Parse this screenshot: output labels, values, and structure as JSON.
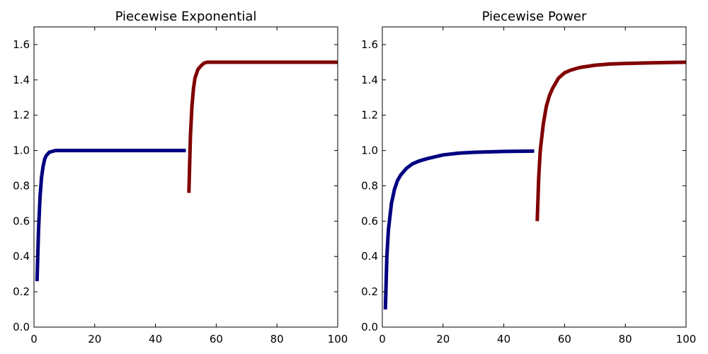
{
  "chart_data": [
    {
      "type": "line",
      "title": "Piecewise Exponential",
      "xlabel": "",
      "ylabel": "",
      "xlim": [
        0,
        100
      ],
      "ylim": [
        0.0,
        1.7
      ],
      "xticks": [
        "0",
        "20",
        "40",
        "60",
        "80",
        "100"
      ],
      "yticks": [
        "0.0",
        "0.2",
        "0.4",
        "0.6",
        "0.8",
        "1.0",
        "1.2",
        "1.4",
        "1.6"
      ],
      "grid": false,
      "series": [
        {
          "color": "#000080",
          "x": [
            1,
            1.5,
            2,
            2.5,
            3,
            3.5,
            4,
            5,
            6,
            7,
            8,
            10,
            15,
            20,
            30,
            40,
            50
          ],
          "y": [
            0.26,
            0.55,
            0.74,
            0.85,
            0.91,
            0.95,
            0.97,
            0.99,
            0.995,
            1.0,
            1.0,
            1.0,
            1.0,
            1.0,
            1.0,
            1.0,
            1.0
          ]
        },
        {
          "color": "#800000",
          "x": [
            51,
            51.5,
            52,
            52.5,
            53,
            54,
            55,
            56,
            57,
            58,
            60,
            65,
            70,
            80,
            90,
            100
          ],
          "y": [
            0.76,
            1.08,
            1.25,
            1.35,
            1.41,
            1.46,
            1.48,
            1.495,
            1.5,
            1.5,
            1.5,
            1.5,
            1.5,
            1.5,
            1.5,
            1.5
          ]
        }
      ]
    },
    {
      "type": "line",
      "title": "Piecewise Power",
      "xlabel": "",
      "ylabel": "",
      "xlim": [
        0,
        100
      ],
      "ylim": [
        0.0,
        1.7
      ],
      "xticks": [
        "0",
        "20",
        "40",
        "60",
        "80",
        "100"
      ],
      "yticks": [
        "0.0",
        "0.2",
        "0.4",
        "0.6",
        "0.8",
        "1.0",
        "1.2",
        "1.4",
        "1.6"
      ],
      "grid": false,
      "series": [
        {
          "color": "#000080",
          "x": [
            1,
            1.5,
            2,
            3,
            4,
            5,
            6,
            8,
            10,
            12,
            15,
            20,
            25,
            30,
            40,
            50
          ],
          "y": [
            0.1,
            0.4,
            0.55,
            0.7,
            0.78,
            0.83,
            0.86,
            0.9,
            0.925,
            0.94,
            0.955,
            0.975,
            0.985,
            0.99,
            0.995,
            0.997
          ]
        },
        {
          "color": "#800000",
          "x": [
            51,
            51.5,
            52,
            53,
            54,
            55,
            56,
            58,
            60,
            62,
            65,
            70,
            75,
            80,
            90,
            100
          ],
          "y": [
            0.6,
            0.85,
            1.0,
            1.15,
            1.25,
            1.31,
            1.35,
            1.41,
            1.44,
            1.455,
            1.47,
            1.483,
            1.49,
            1.493,
            1.497,
            1.5
          ]
        }
      ]
    }
  ]
}
